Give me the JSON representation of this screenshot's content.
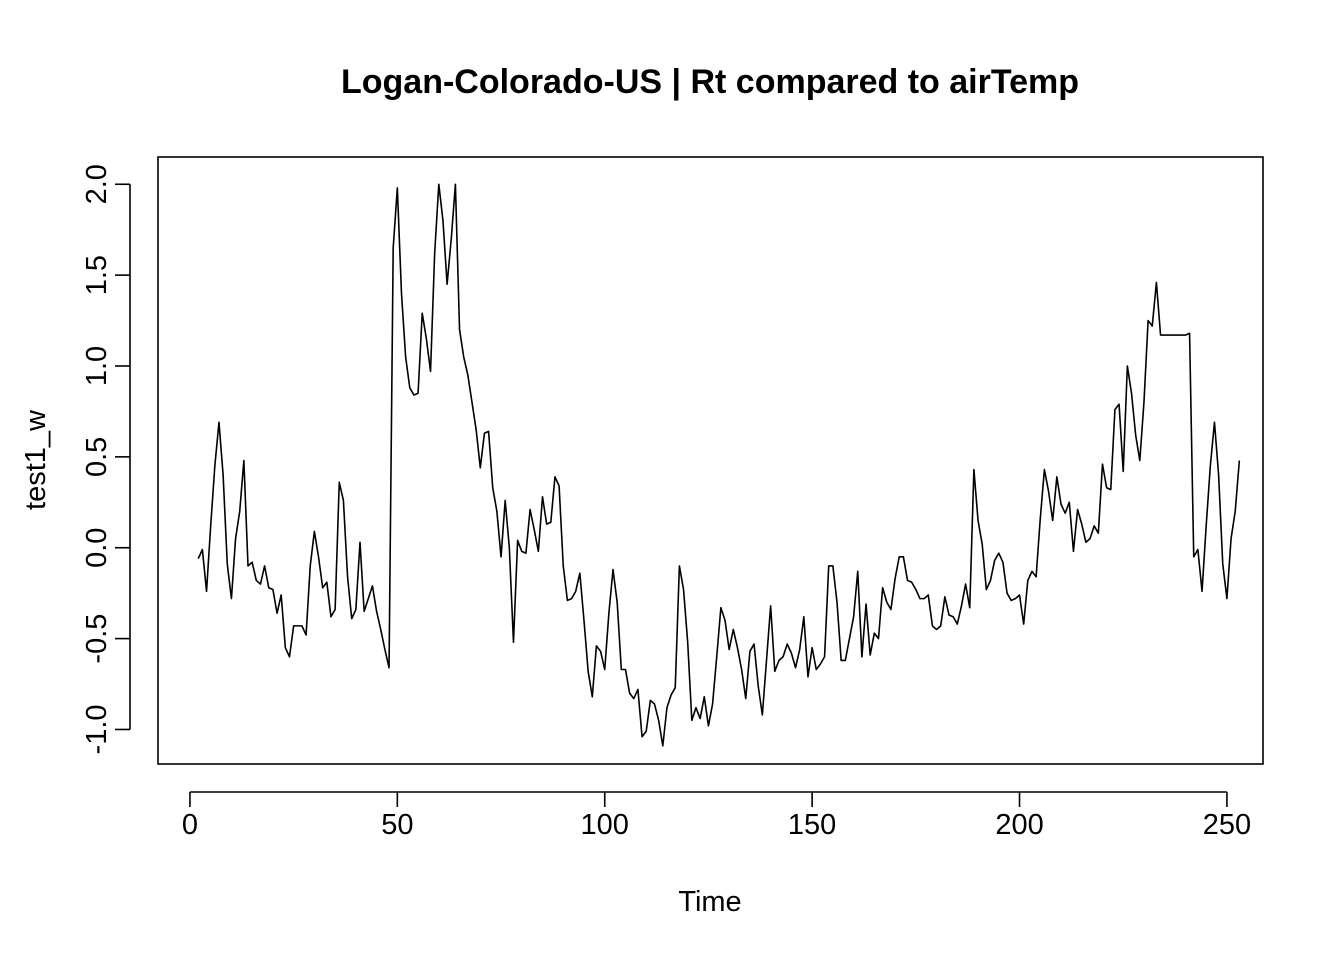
{
  "chart_data": {
    "type": "line",
    "title": "Logan-Colorado-US | Rt compared to airTemp",
    "xlabel": "Time",
    "ylabel": "test1_w",
    "xlim": [
      -7.7,
      258.7
    ],
    "ylim": [
      -1.19,
      2.15
    ],
    "xticks": [
      0,
      50,
      100,
      150,
      200,
      250
    ],
    "xtick_labels": [
      "0",
      "50",
      "100",
      "150",
      "200",
      "250"
    ],
    "yticks": [
      -1.0,
      -0.5,
      0.0,
      0.5,
      1.0,
      1.5,
      2.0
    ],
    "ytick_labels": [
      "-1.0",
      "-0.5",
      "0.0",
      "0.5",
      "1.0",
      "1.5",
      "2.0"
    ],
    "grid": false,
    "legend": "none",
    "series": [
      {
        "color": "#000000",
        "points": [
          [
            2,
            -0.06
          ],
          [
            3,
            -0.01
          ],
          [
            4,
            -0.24
          ],
          [
            5,
            0.12
          ],
          [
            6,
            0.45
          ],
          [
            7,
            0.69
          ],
          [
            8,
            0.4
          ],
          [
            9,
            -0.09
          ],
          [
            10,
            -0.28
          ],
          [
            11,
            0.05
          ],
          [
            12,
            0.2
          ],
          [
            13,
            0.48
          ],
          [
            14,
            -0.1
          ],
          [
            15,
            -0.08
          ],
          [
            16,
            -0.18
          ],
          [
            17,
            -0.2
          ],
          [
            18,
            -0.1
          ],
          [
            19,
            -0.22
          ],
          [
            20,
            -0.23
          ],
          [
            21,
            -0.36
          ],
          [
            22,
            -0.26
          ],
          [
            23,
            -0.55
          ],
          [
            24,
            -0.6
          ],
          [
            25,
            -0.43
          ],
          [
            26,
            -0.43
          ],
          [
            27,
            -0.43
          ],
          [
            28,
            -0.48
          ],
          [
            29,
            -0.1
          ],
          [
            30,
            0.09
          ],
          [
            31,
            -0.05
          ],
          [
            32,
            -0.22
          ],
          [
            33,
            -0.19
          ],
          [
            34,
            -0.38
          ],
          [
            35,
            -0.34
          ],
          [
            36,
            0.36
          ],
          [
            37,
            0.26
          ],
          [
            38,
            -0.16
          ],
          [
            39,
            -0.39
          ],
          [
            40,
            -0.34
          ],
          [
            41,
            0.03
          ],
          [
            42,
            -0.35
          ],
          [
            43,
            -0.28
          ],
          [
            44,
            -0.21
          ],
          [
            45,
            -0.35
          ],
          [
            46,
            -0.45
          ],
          [
            47,
            -0.56
          ],
          [
            48,
            -0.66
          ],
          [
            49,
            1.65
          ],
          [
            50,
            1.98
          ],
          [
            51,
            1.4
          ],
          [
            52,
            1.05
          ],
          [
            53,
            0.88
          ],
          [
            54,
            0.84
          ],
          [
            55,
            0.85
          ],
          [
            56,
            1.29
          ],
          [
            57,
            1.15
          ],
          [
            58,
            0.97
          ],
          [
            59,
            1.62
          ],
          [
            60,
            2.0
          ],
          [
            61,
            1.8
          ],
          [
            62,
            1.45
          ],
          [
            63,
            1.7
          ],
          [
            64,
            2.0
          ],
          [
            65,
            1.2
          ],
          [
            66,
            1.05
          ],
          [
            67,
            0.95
          ],
          [
            68,
            0.8
          ],
          [
            69,
            0.65
          ],
          [
            70,
            0.44
          ],
          [
            71,
            0.63
          ],
          [
            72,
            0.64
          ],
          [
            73,
            0.33
          ],
          [
            74,
            0.2
          ],
          [
            75,
            -0.05
          ],
          [
            76,
            0.26
          ],
          [
            77,
            0.0
          ],
          [
            78,
            -0.52
          ],
          [
            79,
            0.04
          ],
          [
            80,
            -0.02
          ],
          [
            81,
            -0.03
          ],
          [
            82,
            0.21
          ],
          [
            83,
            0.1
          ],
          [
            84,
            -0.02
          ],
          [
            85,
            0.28
          ],
          [
            86,
            0.13
          ],
          [
            87,
            0.14
          ],
          [
            88,
            0.39
          ],
          [
            89,
            0.34
          ],
          [
            90,
            -0.1
          ],
          [
            91,
            -0.29
          ],
          [
            92,
            -0.28
          ],
          [
            93,
            -0.24
          ],
          [
            94,
            -0.14
          ],
          [
            95,
            -0.4
          ],
          [
            96,
            -0.68
          ],
          [
            97,
            -0.82
          ],
          [
            98,
            -0.54
          ],
          [
            99,
            -0.57
          ],
          [
            100,
            -0.67
          ],
          [
            101,
            -0.36
          ],
          [
            102,
            -0.12
          ],
          [
            103,
            -0.3
          ],
          [
            104,
            -0.67
          ],
          [
            105,
            -0.67
          ],
          [
            106,
            -0.8
          ],
          [
            107,
            -0.83
          ],
          [
            108,
            -0.78
          ],
          [
            109,
            -1.04
          ],
          [
            110,
            -1.01
          ],
          [
            111,
            -0.84
          ],
          [
            112,
            -0.86
          ],
          [
            113,
            -0.95
          ],
          [
            114,
            -1.09
          ],
          [
            115,
            -0.88
          ],
          [
            116,
            -0.81
          ],
          [
            117,
            -0.77
          ],
          [
            118,
            -0.1
          ],
          [
            119,
            -0.23
          ],
          [
            120,
            -0.52
          ],
          [
            121,
            -0.95
          ],
          [
            122,
            -0.88
          ],
          [
            123,
            -0.94
          ],
          [
            124,
            -0.82
          ],
          [
            125,
            -0.98
          ],
          [
            126,
            -0.86
          ],
          [
            127,
            -0.6
          ],
          [
            128,
            -0.33
          ],
          [
            129,
            -0.4
          ],
          [
            130,
            -0.56
          ],
          [
            131,
            -0.45
          ],
          [
            132,
            -0.55
          ],
          [
            133,
            -0.67
          ],
          [
            134,
            -0.83
          ],
          [
            135,
            -0.57
          ],
          [
            136,
            -0.53
          ],
          [
            137,
            -0.76
          ],
          [
            138,
            -0.92
          ],
          [
            139,
            -0.62
          ],
          [
            140,
            -0.32
          ],
          [
            141,
            -0.68
          ],
          [
            142,
            -0.62
          ],
          [
            143,
            -0.6
          ],
          [
            144,
            -0.53
          ],
          [
            145,
            -0.58
          ],
          [
            146,
            -0.66
          ],
          [
            147,
            -0.56
          ],
          [
            148,
            -0.38
          ],
          [
            149,
            -0.71
          ],
          [
            150,
            -0.55
          ],
          [
            151,
            -0.67
          ],
          [
            152,
            -0.64
          ],
          [
            153,
            -0.6
          ],
          [
            154,
            -0.1
          ],
          [
            155,
            -0.1
          ],
          [
            156,
            -0.3
          ],
          [
            157,
            -0.62
          ],
          [
            158,
            -0.62
          ],
          [
            159,
            -0.5
          ],
          [
            160,
            -0.38
          ],
          [
            161,
            -0.13
          ],
          [
            162,
            -0.6
          ],
          [
            163,
            -0.31
          ],
          [
            164,
            -0.59
          ],
          [
            165,
            -0.47
          ],
          [
            166,
            -0.5
          ],
          [
            167,
            -0.22
          ],
          [
            168,
            -0.3
          ],
          [
            169,
            -0.34
          ],
          [
            170,
            -0.17
          ],
          [
            171,
            -0.05
          ],
          [
            172,
            -0.05
          ],
          [
            173,
            -0.18
          ],
          [
            174,
            -0.19
          ],
          [
            175,
            -0.23
          ],
          [
            176,
            -0.28
          ],
          [
            177,
            -0.28
          ],
          [
            178,
            -0.26
          ],
          [
            179,
            -0.43
          ],
          [
            180,
            -0.45
          ],
          [
            181,
            -0.43
          ],
          [
            182,
            -0.27
          ],
          [
            183,
            -0.37
          ],
          [
            184,
            -0.38
          ],
          [
            185,
            -0.42
          ],
          [
            186,
            -0.32
          ],
          [
            187,
            -0.2
          ],
          [
            188,
            -0.33
          ],
          [
            189,
            0.43
          ],
          [
            190,
            0.15
          ],
          [
            191,
            0.02
          ],
          [
            192,
            -0.23
          ],
          [
            193,
            -0.18
          ],
          [
            194,
            -0.07
          ],
          [
            195,
            -0.03
          ],
          [
            196,
            -0.08
          ],
          [
            197,
            -0.25
          ],
          [
            198,
            -0.29
          ],
          [
            199,
            -0.28
          ],
          [
            200,
            -0.26
          ],
          [
            201,
            -0.42
          ],
          [
            202,
            -0.18
          ],
          [
            203,
            -0.13
          ],
          [
            204,
            -0.16
          ],
          [
            205,
            0.16
          ],
          [
            206,
            0.43
          ],
          [
            207,
            0.31
          ],
          [
            208,
            0.15
          ],
          [
            209,
            0.39
          ],
          [
            210,
            0.24
          ],
          [
            211,
            0.19
          ],
          [
            212,
            0.25
          ],
          [
            213,
            -0.02
          ],
          [
            214,
            0.21
          ],
          [
            215,
            0.13
          ],
          [
            216,
            0.03
          ],
          [
            217,
            0.05
          ],
          [
            218,
            0.12
          ],
          [
            219,
            0.08
          ],
          [
            220,
            0.46
          ],
          [
            221,
            0.33
          ],
          [
            222,
            0.32
          ],
          [
            223,
            0.76
          ],
          [
            224,
            0.79
          ],
          [
            225,
            0.42
          ],
          [
            226,
            1.0
          ],
          [
            227,
            0.85
          ],
          [
            228,
            0.62
          ],
          [
            229,
            0.48
          ],
          [
            230,
            0.8
          ],
          [
            231,
            1.25
          ],
          [
            232,
            1.22
          ],
          [
            233,
            1.46
          ],
          [
            234,
            1.17
          ],
          [
            240,
            1.17
          ],
          [
            241,
            1.18
          ],
          [
            242,
            -0.05
          ],
          [
            243,
            -0.01
          ],
          [
            244,
            -0.24
          ],
          [
            245,
            0.12
          ],
          [
            246,
            0.45
          ],
          [
            247,
            0.69
          ],
          [
            248,
            0.4
          ],
          [
            249,
            -0.09
          ],
          [
            250,
            -0.28
          ],
          [
            251,
            0.05
          ],
          [
            252,
            0.2
          ],
          [
            253,
            0.48
          ]
        ]
      }
    ]
  }
}
